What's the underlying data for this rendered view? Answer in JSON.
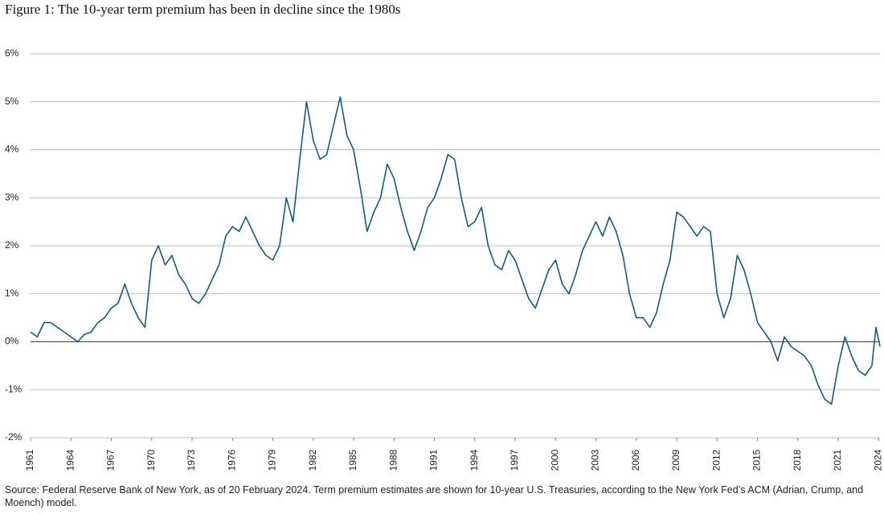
{
  "chart_data": {
    "type": "line",
    "title": "Figure 1: The 10-year term premium has been in decline since the 1980s",
    "source": "Source: Federal Reserve Bank of New York, as of 20 February 2024. Term premium estimates are shown for 10-year U.S. Treasuries, according to the New York Fed’s ACM (Adrian, Crump, and Moench) model.",
    "x": [
      1961,
      1961.5,
      1962,
      1962.5,
      1963,
      1963.5,
      1964,
      1964.5,
      1965,
      1965.5,
      1966,
      1966.5,
      1967,
      1967.5,
      1968,
      1968.5,
      1969,
      1969.5,
      1970,
      1970.5,
      1971,
      1971.5,
      1972,
      1972.5,
      1973,
      1973.5,
      1974,
      1974.5,
      1975,
      1975.5,
      1976,
      1976.5,
      1977,
      1977.5,
      1978,
      1978.5,
      1979,
      1979.5,
      1980,
      1980.5,
      1981,
      1981.5,
      1982,
      1982.5,
      1983,
      1983.5,
      1984,
      1984.5,
      1985,
      1985.5,
      1986,
      1986.5,
      1987,
      1987.5,
      1988,
      1988.5,
      1989,
      1989.5,
      1990,
      1990.5,
      1991,
      1991.5,
      1992,
      1992.5,
      1993,
      1993.5,
      1994,
      1994.5,
      1995,
      1995.5,
      1996,
      1996.5,
      1997,
      1997.5,
      1998,
      1998.5,
      1999,
      1999.5,
      2000,
      2000.5,
      2001,
      2001.5,
      2002,
      2002.5,
      2003,
      2003.5,
      2004,
      2004.5,
      2005,
      2005.5,
      2006,
      2006.5,
      2007,
      2007.5,
      2008,
      2008.5,
      2009,
      2009.5,
      2010,
      2010.5,
      2011,
      2011.5,
      2012,
      2012.5,
      2013,
      2013.5,
      2014,
      2014.5,
      2015,
      2015.5,
      2016,
      2016.5,
      2017,
      2017.5,
      2018,
      2018.5,
      2019,
      2019.5,
      2020,
      2020.5,
      2021,
      2021.5,
      2022,
      2022.5,
      2023,
      2023.5,
      2023.8,
      2024.1
    ],
    "series": [
      {
        "name": "10-year term premium",
        "color": "#175a7e",
        "values": [
          0.2,
          0.1,
          0.4,
          0.4,
          0.3,
          0.2,
          0.1,
          0.0,
          0.15,
          0.2,
          0.4,
          0.5,
          0.7,
          0.8,
          1.2,
          0.8,
          0.5,
          0.3,
          1.7,
          2.0,
          1.6,
          1.8,
          1.4,
          1.2,
          0.9,
          0.8,
          1.0,
          1.3,
          1.6,
          2.2,
          2.4,
          2.3,
          2.6,
          2.3,
          2.0,
          1.8,
          1.7,
          2.0,
          3.0,
          2.5,
          3.8,
          5.0,
          4.2,
          3.8,
          3.9,
          4.5,
          5.1,
          4.3,
          4.0,
          3.2,
          2.3,
          2.7,
          3.0,
          3.7,
          3.4,
          2.8,
          2.3,
          1.9,
          2.3,
          2.8,
          3.0,
          3.4,
          3.9,
          3.8,
          3.0,
          2.4,
          2.5,
          2.8,
          2.0,
          1.6,
          1.5,
          1.9,
          1.7,
          1.3,
          0.9,
          0.7,
          1.1,
          1.5,
          1.7,
          1.2,
          1.0,
          1.4,
          1.9,
          2.2,
          2.5,
          2.2,
          2.6,
          2.3,
          1.8,
          1.0,
          0.5,
          0.5,
          0.3,
          0.6,
          1.2,
          1.7,
          2.7,
          2.6,
          2.4,
          2.2,
          2.4,
          2.3,
          1.0,
          0.5,
          0.9,
          1.8,
          1.5,
          1.0,
          0.4,
          0.2,
          0.0,
          -0.4,
          0.1,
          -0.1,
          -0.2,
          -0.3,
          -0.5,
          -0.9,
          -1.2,
          -1.3,
          -0.5,
          0.1,
          -0.3,
          -0.6,
          -0.7,
          -0.5,
          0.3,
          -0.1
        ]
      }
    ],
    "xlim": [
      1961,
      2024.1
    ],
    "xticks": [
      1961,
      1964,
      1967,
      1970,
      1973,
      1976,
      1979,
      1982,
      1985,
      1988,
      1991,
      1994,
      1997,
      2000,
      2003,
      2006,
      2009,
      2012,
      2015,
      2018,
      2021,
      2024
    ],
    "ylim": [
      -2,
      6
    ],
    "yticks": [
      {
        "value": -2,
        "label": "-2%"
      },
      {
        "value": -1,
        "label": "-1%"
      },
      {
        "value": 0,
        "label": "0%"
      },
      {
        "value": 1,
        "label": "1%"
      },
      {
        "value": 2,
        "label": "2%"
      },
      {
        "value": 3,
        "label": "3%"
      },
      {
        "value": 4,
        "label": "4%"
      },
      {
        "value": 5,
        "label": "5%"
      },
      {
        "value": 6,
        "label": "6%"
      }
    ],
    "grid": true
  }
}
